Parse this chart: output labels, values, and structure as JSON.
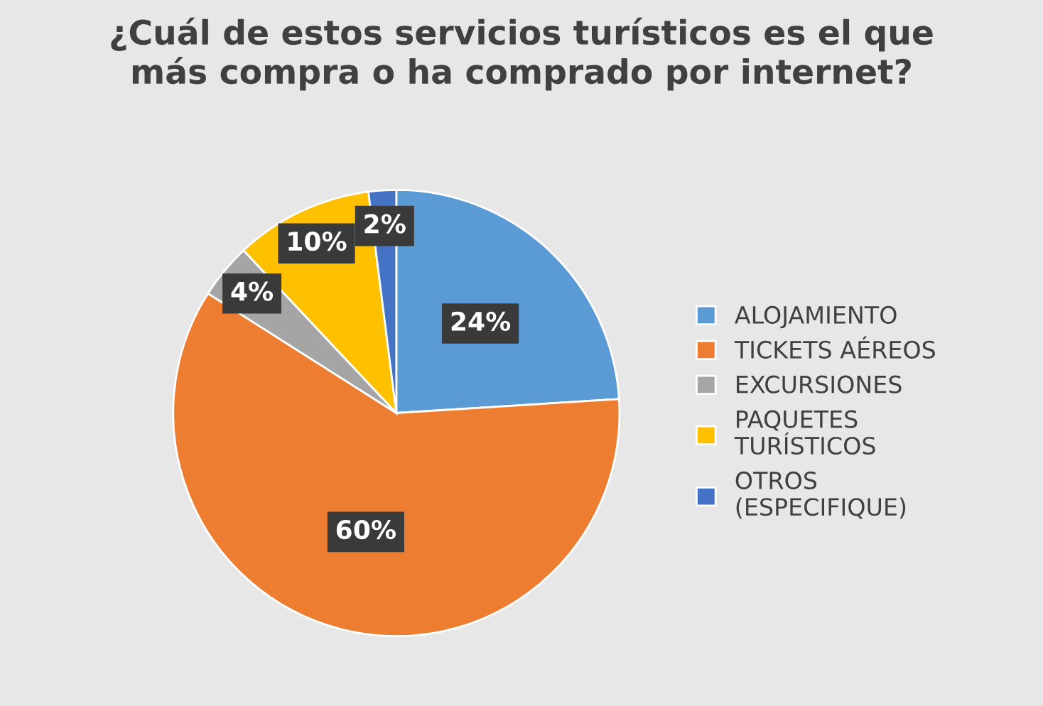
{
  "chart_data": {
    "type": "pie",
    "title": "¿Cuál de estos servicios turísticos es el que\nmás compra o ha comprado por internet?",
    "categories": [
      "ALOJAMIENTO",
      "TICKETS AÉREOS",
      "EXCURSIONES",
      "PAQUETES\nTURÍSTICOS",
      "OTROS\n(ESPECIFIQUE)"
    ],
    "values": [
      24,
      60,
      4,
      10,
      2
    ],
    "colors": [
      "#5b9bd5",
      "#ed7d31",
      "#a5a5a5",
      "#ffc000",
      "#4472c4"
    ],
    "value_labels": [
      "24%",
      "60%",
      "4%",
      "10%",
      "2%"
    ],
    "legend": "right"
  }
}
